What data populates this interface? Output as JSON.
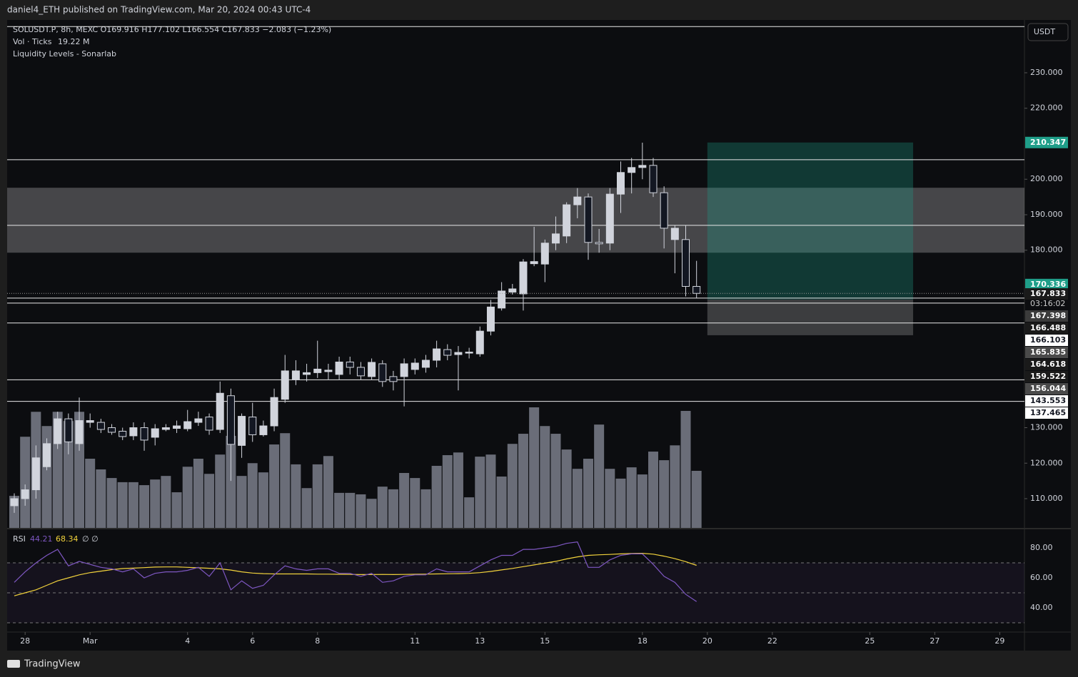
{
  "header": {
    "publisher": "daniel4_ETH published on TradingView.com, Mar 20, 2024 00:43 UTC-4",
    "logo": "TradingView"
  },
  "chart_data": {
    "type": "candlestick",
    "title": "SOLUSDT.P, 8h, MEXC  O169.916 H177.102 L166.554 C167.833 −2.083 (−1.23%)",
    "volume_name": "Vol · Ticks",
    "volume_label": "19.22 M",
    "indicator": "Liquidity Levels - Sonarlab",
    "currency": "USDT",
    "open": [
      108,
      110,
      112.5,
      119,
      125.5,
      132.5,
      125.5,
      131.5,
      131.5,
      130,
      129,
      127.7,
      130,
      127.3,
      129.5,
      129.8,
      129.7,
      131.5,
      133,
      129.5,
      139,
      125,
      133,
      128,
      130.5,
      138,
      143.5,
      145,
      145.5,
      145.8,
      145,
      148.5,
      147,
      144.4,
      148,
      144.4,
      144.4,
      146.4,
      147,
      149,
      152,
      150.6,
      151,
      150.8,
      157.2,
      163.7,
      168.2,
      167.7,
      176.2,
      176.1,
      182,
      184,
      192.8,
      195,
      182.2,
      182,
      195.8,
      201.9,
      203.3,
      203.9,
      196.2,
      183,
      183,
      169.8
    ],
    "high": [
      111.5,
      114,
      125,
      127,
      134.5,
      134,
      138.5,
      134,
      132.5,
      131,
      130,
      131.5,
      131.5,
      131,
      131,
      132,
      135,
      134.5,
      134,
      143,
      141,
      134,
      137,
      132,
      141,
      150.5,
      149,
      148,
      154.5,
      148,
      150,
      150,
      148.5,
      149.5,
      149,
      146,
      149.5,
      149.5,
      150.5,
      154.5,
      153.5,
      153,
      152.5,
      158.5,
      166,
      171,
      170.5,
      177.5,
      186.6,
      183,
      189.5,
      193.5,
      197.5,
      196,
      186,
      197.5,
      205,
      206,
      210.3,
      206,
      198,
      187,
      187,
      177
    ],
    "low": [
      106,
      108,
      110,
      118,
      124,
      122.5,
      123.5,
      130,
      128.5,
      128,
      126.5,
      126.5,
      123.5,
      125,
      129,
      128.5,
      129,
      130.5,
      128,
      128.5,
      115,
      121.5,
      126,
      127.5,
      129,
      137,
      142,
      143,
      144,
      143.5,
      143.5,
      145,
      143.5,
      143.5,
      141.5,
      140.5,
      136,
      145,
      145.5,
      147,
      149,
      140.5,
      149.5,
      150,
      156,
      163,
      167.5,
      163,
      175.5,
      171,
      180,
      182,
      189,
      177.3,
      179.3,
      180,
      190.5,
      196,
      200,
      195,
      180.5,
      173.5,
      167,
      166.5
    ],
    "close": [
      110,
      112.5,
      121.5,
      125.5,
      132.5,
      126,
      132,
      132,
      129.5,
      128.7,
      127.5,
      130,
      126.5,
      129.7,
      130,
      130.5,
      131.7,
      132.5,
      129.3,
      139.7,
      125.3,
      133.2,
      128,
      130.5,
      138.5,
      146,
      146,
      145.5,
      146.5,
      146.2,
      148.5,
      147,
      144.6,
      148.4,
      143,
      143,
      148,
      148.2,
      149,
      152.2,
      150.4,
      151.2,
      151.3,
      157.2,
      164,
      168.5,
      169.1,
      176.7,
      176.8,
      182,
      184.6,
      192.8,
      195,
      182.2,
      181.8,
      195.8,
      201.9,
      203.3,
      203.9,
      196.2,
      186.2,
      186.2,
      169.8,
      167.833
    ],
    "volume": [
      10.8,
      30.7,
      39.1,
      34.3,
      39.1,
      36,
      39.1,
      23.3,
      19.7,
      16.8,
      15.4,
      15.4,
      14.4,
      16.3,
      17.5,
      12,
      20.6,
      23.3,
      18.2,
      24.7,
      31,
      17.5,
      21.8,
      18.7,
      28.1,
      31.9,
      21.4,
      13.4,
      21.4,
      24.2,
      11.8,
      11.8,
      11.3,
      9.8,
      13.9,
      13,
      18.5,
      16.8,
      13,
      20.9,
      24.5,
      25.4,
      10.3,
      24,
      24.7,
      17.3,
      28.3,
      31.7,
      40.6,
      34.3,
      31.7,
      26.4,
      19.9,
      23.3,
      34.8,
      19.9,
      16.6,
      20.4,
      18,
      25.7,
      22.8,
      27.8,
      39.4,
      19.22
    ],
    "bull_color": "#d1d4dc",
    "bear_color": "#131722",
    "volume_color": "#6a6d78",
    "xlim": [
      -0.66,
      93.28
    ],
    "xticks": [
      {
        "value": 1,
        "label": "28"
      },
      {
        "value": 7,
        "label": "Mar"
      },
      {
        "value": 16,
        "label": "4"
      },
      {
        "value": 22,
        "label": "6"
      },
      {
        "value": 28,
        "label": "8"
      },
      {
        "value": 37,
        "label": "11"
      },
      {
        "value": 43,
        "label": "13"
      },
      {
        "value": 49,
        "label": "15"
      },
      {
        "value": 58,
        "label": "18"
      },
      {
        "value": 64,
        "label": "20"
      },
      {
        "value": 70,
        "label": "22"
      },
      {
        "value": 79,
        "label": "25"
      },
      {
        "value": 85,
        "label": "27"
      },
      {
        "value": 91,
        "label": "29"
      }
    ],
    "ylim": [
      101.76,
      244.87
    ],
    "yticks": [
      {
        "value": 110,
        "label": "110.000"
      },
      {
        "value": 120,
        "label": "120.000"
      },
      {
        "value": 130,
        "label": "130.000"
      },
      {
        "value": 180,
        "label": "180.000"
      },
      {
        "value": 190,
        "label": "190.000"
      },
      {
        "value": 200,
        "label": "200.000"
      },
      {
        "value": 220,
        "label": "220.000"
      },
      {
        "value": 230,
        "label": "230.000"
      }
    ],
    "zone": [
      179.3,
      197.6
    ],
    "levels": [
      243,
      205.5,
      187,
      166.5,
      165.1,
      159.5,
      143.5,
      137.4
    ],
    "position": {
      "entry": 166.103,
      "target": 210.347,
      "stop": 156.044,
      "x": [
        64,
        83
      ]
    },
    "price_labels": [
      {
        "value": 210.347,
        "color": "#1f9e89"
      },
      {
        "value": 170.336,
        "color": "#1f9e89"
      },
      {
        "value": 167.833,
        "color": "#1a1a1a"
      },
      {
        "value": 167.398,
        "color": "#3b3b3b"
      },
      {
        "value": 166.488,
        "color": "#1a1a1a"
      },
      {
        "value": 166.103,
        "color": "#ffffff"
      },
      {
        "value": 165.835,
        "color": "#4a4a4a"
      },
      {
        "value": 164.618,
        "color": "#1a1a1a"
      },
      {
        "value": 159.522,
        "color": "#1a1a1a"
      },
      {
        "value": 156.044,
        "color": "#4a4a4a"
      },
      {
        "value": 143.553,
        "color": "#ffffff"
      },
      {
        "value": 137.465,
        "color": "#ffffff"
      }
    ],
    "countdown": "03:16:02",
    "rsi": {
      "name": "RSI",
      "color": "#7e57c2",
      "ma_color": "#f2d33c",
      "extra": "∅ ∅",
      "values": [
        57,
        64,
        70,
        75,
        79,
        68,
        71,
        69,
        67,
        66,
        64,
        66,
        60,
        63,
        64,
        64,
        65,
        67,
        61,
        70,
        52,
        58,
        53,
        55,
        62,
        68,
        66,
        65,
        66,
        66,
        63,
        63,
        61,
        63,
        57,
        58,
        61,
        62,
        62,
        66,
        64,
        64,
        64,
        68,
        72,
        75,
        75,
        79,
        79,
        80,
        81,
        83,
        84,
        67,
        67,
        72,
        75,
        76,
        76,
        69,
        61,
        57,
        49,
        44.21
      ],
      "ma": [
        48,
        50,
        52,
        55,
        58,
        60,
        62,
        63.5,
        64.5,
        65.5,
        66.2,
        66.5,
        66.8,
        67.2,
        67.3,
        67.3,
        67,
        66.7,
        66.4,
        66,
        65.2,
        64,
        63.2,
        62.8,
        62.6,
        62.6,
        62.6,
        62.6,
        62.5,
        62.5,
        62.4,
        62.3,
        62.2,
        62.2,
        62.3,
        62.2,
        62.3,
        62.4,
        62.5,
        62.6,
        62.7,
        62.8,
        63,
        63.5,
        64.3,
        65.3,
        66.3,
        67.5,
        68.6,
        69.8,
        71,
        72.6,
        74,
        75,
        75.4,
        75.6,
        76,
        76.3,
        76.4,
        75.8,
        74.5,
        72.8,
        70.8,
        68.34
      ],
      "ylim": [
        24.29,
        92.38
      ],
      "yticks": [
        {
          "value": 40,
          "label": "40.00"
        },
        {
          "value": 60,
          "label": "60.00"
        },
        {
          "value": 80,
          "label": "80.00"
        }
      ],
      "bands": [
        30,
        50,
        70
      ]
    }
  }
}
